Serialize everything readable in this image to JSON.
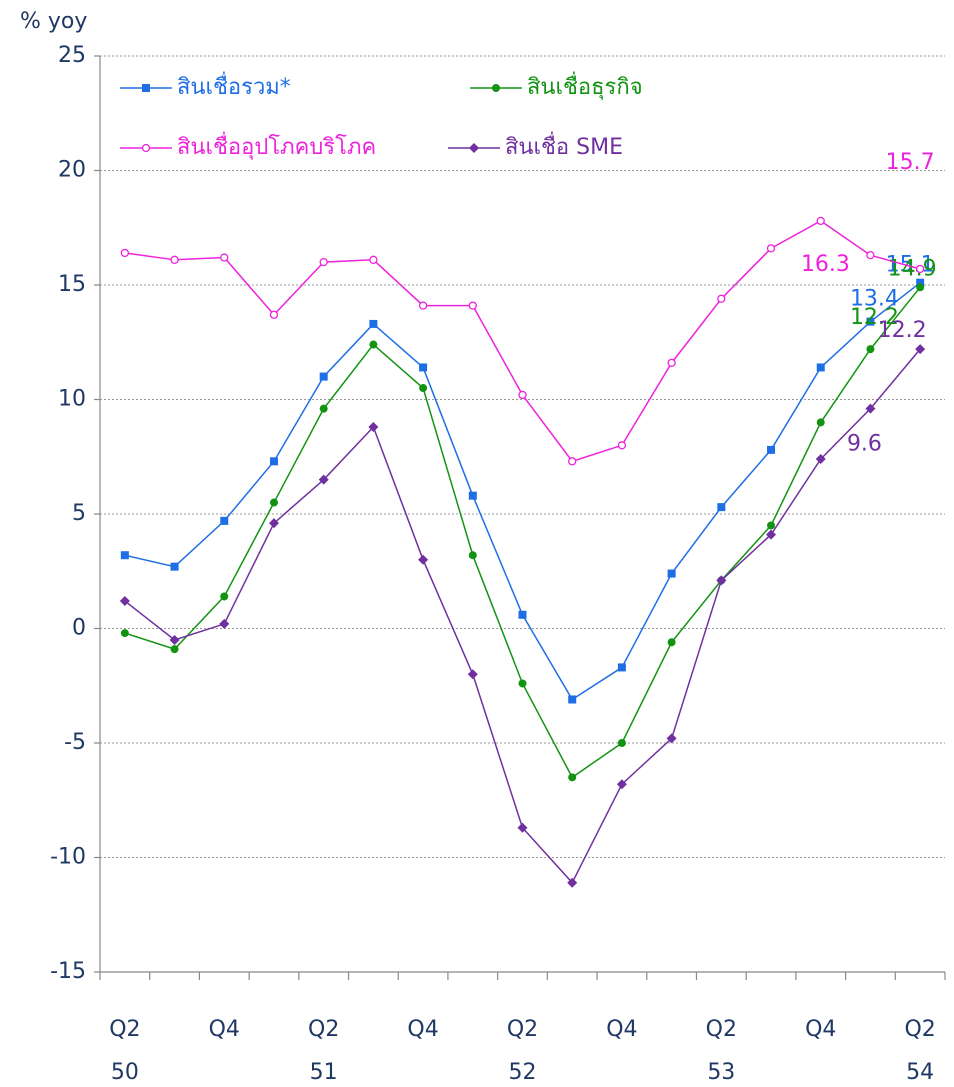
{
  "chart_data": {
    "type": "line",
    "title": "% yoy",
    "categories": [
      "Q2",
      null,
      "Q4",
      null,
      "Q2",
      null,
      "Q4",
      null,
      "Q2",
      null,
      "Q4",
      null,
      "Q2",
      null,
      "Q4",
      null,
      "Q2"
    ],
    "year_labels": [
      "50",
      null,
      null,
      null,
      "51",
      null,
      null,
      null,
      "52",
      null,
      null,
      null,
      "53",
      null,
      null,
      null,
      "54"
    ],
    "ylim": [
      -15,
      25
    ],
    "yticks": [
      -15,
      -10,
      -5,
      0,
      5,
      10,
      15,
      20,
      25
    ],
    "grid": true,
    "series": [
      {
        "name": "สินเชื่อรวม*",
        "color": "#1e6ee6",
        "marker": "square",
        "values": [
          3.2,
          2.7,
          4.7,
          7.3,
          11.0,
          13.3,
          11.4,
          5.8,
          0.6,
          -3.1,
          -1.7,
          2.4,
          5.3,
          7.8,
          11.4,
          13.4,
          15.1
        ],
        "value_labels": [
          null,
          null,
          null,
          null,
          null,
          null,
          null,
          null,
          null,
          null,
          null,
          null,
          null,
          null,
          null,
          "13.4",
          "15.1"
        ]
      },
      {
        "name": "สินเชื่อธุรกิจ",
        "color": "#129412",
        "marker": "circle",
        "values": [
          -0.2,
          -0.9,
          1.4,
          5.5,
          9.6,
          12.4,
          10.5,
          3.2,
          -2.4,
          -6.5,
          -5.0,
          -0.6,
          2.1,
          4.5,
          9.0,
          12.2,
          14.9
        ],
        "value_labels": [
          null,
          null,
          null,
          null,
          null,
          null,
          null,
          null,
          null,
          null,
          null,
          null,
          null,
          null,
          null,
          "12.2",
          "14.9"
        ]
      },
      {
        "name": "สินเชื่ออุปโภคบริโภค",
        "color": "#ee22dd",
        "marker": "open-circle",
        "values": [
          16.4,
          16.1,
          16.2,
          13.7,
          16.0,
          16.1,
          14.1,
          14.1,
          10.2,
          7.3,
          8.0,
          11.6,
          14.4,
          16.6,
          17.8,
          16.3,
          15.7
        ],
        "value_labels": [
          null,
          null,
          null,
          null,
          null,
          null,
          null,
          null,
          null,
          null,
          null,
          null,
          null,
          null,
          null,
          "16.3",
          "15.7"
        ]
      },
      {
        "name": "สินเชื่อ SME",
        "color": "#7030a0",
        "marker": "diamond",
        "values": [
          1.2,
          -0.5,
          0.2,
          4.6,
          6.5,
          8.8,
          3.0,
          -2.0,
          -8.7,
          -11.1,
          -6.8,
          -4.8,
          2.1,
          4.1,
          7.4,
          9.6,
          12.2
        ],
        "value_labels": [
          null,
          null,
          null,
          null,
          null,
          null,
          null,
          null,
          null,
          null,
          null,
          null,
          null,
          null,
          null,
          "9.6",
          "12.2"
        ]
      }
    ]
  }
}
